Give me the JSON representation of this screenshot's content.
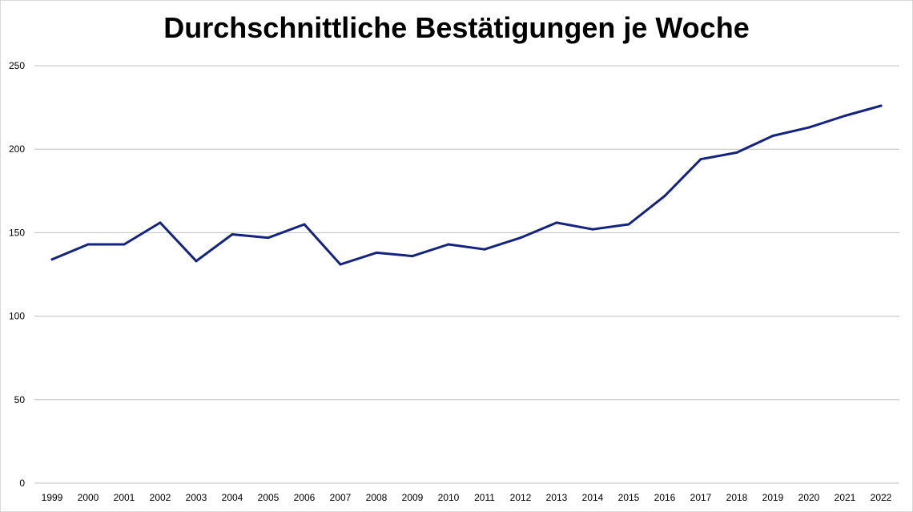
{
  "chart_data": {
    "type": "line",
    "title": "Durchschnittliche Bestätigungen je Woche",
    "xlabel": "",
    "ylabel": "",
    "x": [
      "1999",
      "2000",
      "2001",
      "2002",
      "2003",
      "2004",
      "2005",
      "2006",
      "2007",
      "2008",
      "2009",
      "2010",
      "2011",
      "2012",
      "2013",
      "2014",
      "2015",
      "2016",
      "2017",
      "2018",
      "2019",
      "2020",
      "2021",
      "2022"
    ],
    "series": [
      {
        "values": [
          134,
          143,
          143,
          156,
          133,
          149,
          147,
          155,
          131,
          138,
          136,
          143,
          140,
          147,
          156,
          152,
          155,
          172,
          194,
          198,
          208,
          213,
          220,
          226
        ],
        "color": "#14237f"
      }
    ],
    "ylim": [
      0,
      250
    ],
    "yticks": [
      0,
      50,
      100,
      150,
      200,
      250
    ],
    "grid": true,
    "legend": "none",
    "colors": {
      "gridline": "#c0c0c0",
      "line": "#14237f"
    }
  }
}
